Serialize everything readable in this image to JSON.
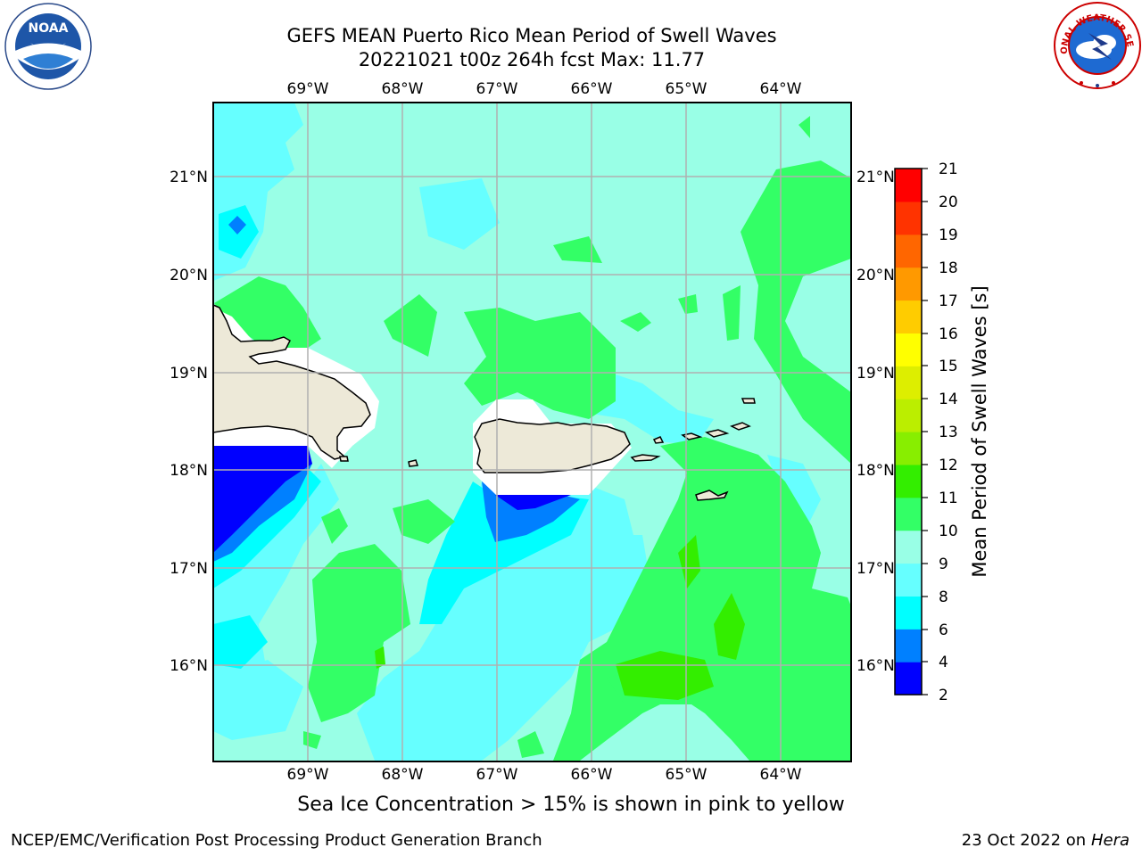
{
  "title": {
    "line1": "GEFS MEAN Puerto Rico Mean Period of Swell Waves",
    "line2": "20221021 t00z 264h fcst   Max: 11.77"
  },
  "map": {
    "lon_labels": [
      "69°W",
      "68°W",
      "67°W",
      "66°W",
      "65°W",
      "64°W"
    ],
    "lat_labels": [
      "21°N",
      "20°N",
      "19°N",
      "18°N",
      "17°N",
      "16°N"
    ]
  },
  "colorbar": {
    "label": "Mean Period of Swell Waves [s]",
    "ticks": [
      "21",
      "20",
      "19",
      "18",
      "17",
      "16",
      "15",
      "14",
      "13",
      "12",
      "11",
      "10",
      "9",
      "8",
      "6",
      "4",
      "2"
    ],
    "colors": [
      "#0000ff",
      "#0080ff",
      "#00ffff",
      "#66ffff",
      "#99ffe6",
      "#33ff66",
      "#33ee00",
      "#88ee00",
      "#bbee00",
      "#ddee00",
      "#ffff00",
      "#ffcc00",
      "#ff9900",
      "#ff6600",
      "#ff3300",
      "#ff0000"
    ]
  },
  "caption": "Sea Ice Concentration > 15% is shown in pink to yellow",
  "footer": {
    "left": "NCEP/EMC/Verification Post Processing Product Generation Branch",
    "right_prefix": "23 Oct 2022 on ",
    "right_machine": "Hera"
  },
  "logos": {
    "noaa_text": "NOAA",
    "nws_text": "NATIONAL WEATHER SERVICE"
  }
}
